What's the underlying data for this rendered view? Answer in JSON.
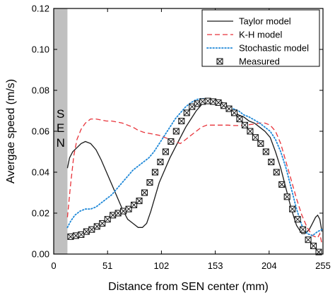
{
  "chart_data": {
    "type": "line",
    "xlabel": "Distance from SEN center (mm)",
    "ylabel": "Avergae speed (m/s)",
    "xlim": [
      0,
      255
    ],
    "ylim": [
      0,
      0.12
    ],
    "xticks": [
      "0",
      "51",
      "102",
      "153",
      "204",
      "255"
    ],
    "yticks": [
      "0.00",
      "0.02",
      "0.04",
      "0.06",
      "0.08",
      "0.10",
      "0.12"
    ],
    "grid": false,
    "legend_position": "top-right",
    "annotation": {
      "text": "SEN",
      "letters": [
        "S",
        "E",
        "N"
      ],
      "x_range": [
        0,
        13
      ],
      "fill": "#c0c0c0"
    },
    "series": [
      {
        "name": "Taylor model",
        "style": "solid",
        "color": "#1a1a1a",
        "x": [
          13,
          15,
          18,
          22,
          26,
          30,
          35,
          40,
          45,
          50,
          55,
          60,
          65,
          70,
          75,
          80,
          84,
          88,
          92,
          96,
          100,
          105,
          110,
          115,
          120,
          125,
          130,
          135,
          140,
          145,
          150,
          155,
          160,
          165,
          170,
          175,
          180,
          185,
          190,
          195,
          200,
          205,
          210,
          215,
          220,
          225,
          230,
          235,
          238,
          240,
          242,
          244,
          246,
          248,
          250,
          252,
          254
        ],
        "y": [
          0.042,
          0.047,
          0.05,
          0.052,
          0.054,
          0.055,
          0.054,
          0.051,
          0.046,
          0.04,
          0.034,
          0.028,
          0.022,
          0.017,
          0.015,
          0.013,
          0.013,
          0.015,
          0.021,
          0.028,
          0.035,
          0.041,
          0.047,
          0.052,
          0.057,
          0.062,
          0.066,
          0.07,
          0.073,
          0.075,
          0.0755,
          0.075,
          0.074,
          0.072,
          0.07,
          0.068,
          0.067,
          0.065,
          0.064,
          0.062,
          0.06,
          0.057,
          0.05,
          0.042,
          0.032,
          0.022,
          0.014,
          0.01,
          0.01,
          0.011,
          0.012,
          0.014,
          0.016,
          0.018,
          0.019,
          0.017,
          0.011
        ]
      },
      {
        "name": "K-H model",
        "style": "dashed",
        "color": "#e8333a",
        "x": [
          13,
          16,
          19,
          22,
          26,
          30,
          35,
          40,
          45,
          50,
          55,
          60,
          65,
          70,
          75,
          80,
          85,
          90,
          95,
          100,
          105,
          110,
          115,
          120,
          125,
          130,
          135,
          140,
          145,
          150,
          155,
          160,
          165,
          170,
          175,
          180,
          185,
          190,
          195,
          200,
          205,
          210,
          215,
          220,
          225,
          230,
          235,
          240,
          245,
          250,
          252,
          254
        ],
        "y": [
          0.018,
          0.034,
          0.048,
          0.056,
          0.061,
          0.064,
          0.066,
          0.066,
          0.0655,
          0.065,
          0.065,
          0.0645,
          0.064,
          0.063,
          0.062,
          0.0605,
          0.0595,
          0.059,
          0.0585,
          0.058,
          0.057,
          0.056,
          0.055,
          0.054,
          0.056,
          0.058,
          0.06,
          0.062,
          0.063,
          0.063,
          0.063,
          0.063,
          0.063,
          0.0628,
          0.0628,
          0.063,
          0.0632,
          0.0635,
          0.064,
          0.064,
          0.063,
          0.06,
          0.054,
          0.045,
          0.036,
          0.027,
          0.019,
          0.013,
          0.009,
          0.008,
          0.01,
          0.005
        ]
      },
      {
        "name": "Stochastic model",
        "style": "dotted",
        "color": "#1e88d8",
        "x": [
          13,
          16,
          20,
          25,
          30,
          35,
          40,
          45,
          50,
          55,
          60,
          65,
          70,
          75,
          80,
          85,
          90,
          95,
          100,
          105,
          110,
          115,
          120,
          125,
          130,
          135,
          140,
          145,
          150,
          155,
          160,
          165,
          170,
          175,
          180,
          185,
          190,
          195,
          200,
          205,
          210,
          215,
          220,
          225,
          230,
          235,
          240,
          245,
          250,
          254
        ],
        "y": [
          0.013,
          0.016,
          0.019,
          0.021,
          0.022,
          0.022,
          0.023,
          0.025,
          0.027,
          0.029,
          0.032,
          0.035,
          0.038,
          0.041,
          0.043,
          0.045,
          0.047,
          0.05,
          0.054,
          0.058,
          0.062,
          0.066,
          0.069,
          0.072,
          0.074,
          0.0755,
          0.076,
          0.0758,
          0.0755,
          0.074,
          0.073,
          0.072,
          0.071,
          0.07,
          0.068,
          0.067,
          0.0655,
          0.064,
          0.062,
          0.06,
          0.056,
          0.05,
          0.042,
          0.032,
          0.022,
          0.014,
          0.01,
          0.009,
          0.011,
          0.012
        ]
      },
      {
        "name": "Measured",
        "style": "marker",
        "color": "#1a1a1a",
        "x": [
          16,
          21,
          26,
          31,
          36,
          41,
          46,
          51,
          56,
          61,
          66,
          71,
          76,
          81,
          86,
          91,
          96,
          101,
          106,
          111,
          116,
          121,
          126,
          131,
          136,
          141,
          146,
          151,
          156,
          161,
          166,
          171,
          176,
          181,
          186,
          191,
          196,
          201,
          206,
          211,
          216,
          221,
          226,
          231,
          236,
          241,
          246,
          251
        ],
        "y": [
          0.0085,
          0.009,
          0.0095,
          0.011,
          0.012,
          0.0135,
          0.015,
          0.017,
          0.019,
          0.02,
          0.021,
          0.022,
          0.024,
          0.026,
          0.03,
          0.035,
          0.04,
          0.045,
          0.05,
          0.055,
          0.06,
          0.065,
          0.069,
          0.072,
          0.0735,
          0.0745,
          0.0748,
          0.0745,
          0.074,
          0.0725,
          0.071,
          0.069,
          0.066,
          0.063,
          0.06,
          0.057,
          0.054,
          0.05,
          0.045,
          0.04,
          0.034,
          0.028,
          0.022,
          0.017,
          0.012,
          0.007,
          0.004,
          0.001
        ]
      }
    ]
  }
}
